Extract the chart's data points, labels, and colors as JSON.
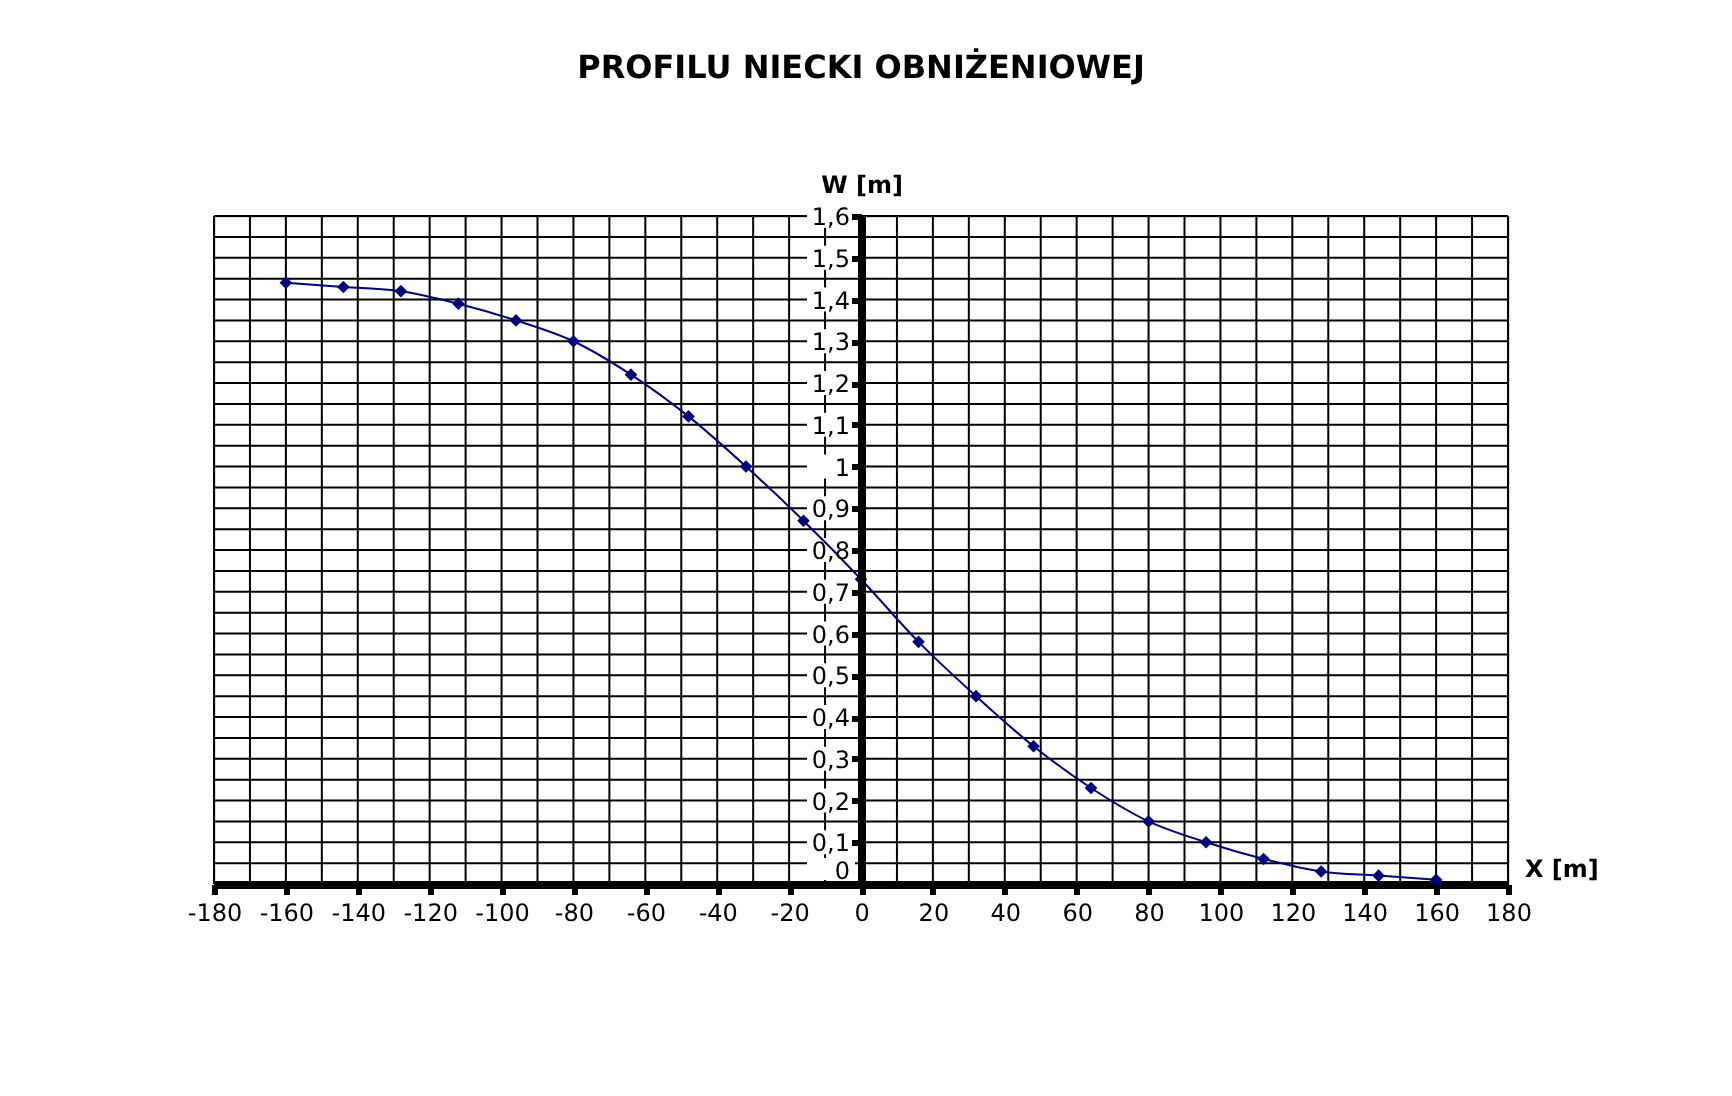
{
  "chart_data": {
    "type": "line",
    "title": "PROFILU NIECKI OBNIŻENIOWEJ",
    "xlabel": "X [m]",
    "ylabel": "W [m]",
    "x": [
      -160,
      -144,
      -128,
      -112,
      -96,
      -80,
      -64,
      -48,
      -32,
      -16,
      0,
      16,
      32,
      48,
      64,
      80,
      96,
      112,
      128,
      144,
      160
    ],
    "series": [
      {
        "color": "#000080",
        "values": [
          1.44,
          1.43,
          1.42,
          1.39,
          1.35,
          1.3,
          1.22,
          1.12,
          1.0,
          0.87,
          0.73,
          0.58,
          0.45,
          0.33,
          0.23,
          0.15,
          0.1,
          0.06,
          0.03,
          0.02,
          0.01
        ]
      }
    ],
    "xlim": [
      -180,
      180
    ],
    "ylim": [
      0,
      1.6
    ],
    "xticks": [
      -180,
      {
        "value": -170,
        "label": null
      },
      -160,
      {
        "value": -150,
        "label": null
      },
      -140,
      {
        "value": -130,
        "label": null
      },
      -120,
      {
        "value": -110,
        "label": null
      },
      -100,
      {
        "value": -90,
        "label": null
      },
      -80,
      {
        "value": -70,
        "label": null
      },
      -60,
      {
        "value": -50,
        "label": null
      },
      -40,
      {
        "value": -30,
        "label": null
      },
      -20,
      {
        "value": -10,
        "label": null
      },
      0,
      {
        "value": 10,
        "label": null
      },
      20,
      {
        "value": 30,
        "label": null
      },
      40,
      {
        "value": 50,
        "label": null
      },
      60,
      {
        "value": 70,
        "label": null
      },
      80,
      {
        "value": 90,
        "label": null
      },
      100,
      {
        "value": 110,
        "label": null
      },
      120,
      {
        "value": 130,
        "label": null
      },
      140,
      {
        "value": 150,
        "label": null
      },
      160,
      {
        "value": 170,
        "label": null
      },
      180
    ],
    "yticks": [
      0,
      {
        "value": 0.05,
        "label": null
      },
      {
        "value": 0.1,
        "label": "0,1"
      },
      {
        "value": 0.15,
        "label": null
      },
      {
        "value": 0.2,
        "label": "0,2"
      },
      {
        "value": 0.25,
        "label": null
      },
      {
        "value": 0.3,
        "label": "0,3"
      },
      {
        "value": 0.35,
        "label": null
      },
      {
        "value": 0.4,
        "label": "0,4"
      },
      {
        "value": 0.45,
        "label": null
      },
      {
        "value": 0.5,
        "label": "0,5"
      },
      {
        "value": 0.55,
        "label": null
      },
      {
        "value": 0.6,
        "label": "0,6"
      },
      {
        "value": 0.65,
        "label": null
      },
      {
        "value": 0.7,
        "label": "0,7"
      },
      {
        "value": 0.75,
        "label": null
      },
      {
        "value": 0.8,
        "label": "0,8"
      },
      {
        "value": 0.85,
        "label": null
      },
      {
        "value": 0.9,
        "label": "0,9"
      },
      {
        "value": 0.95,
        "label": null
      },
      1,
      {
        "value": 1.05,
        "label": null
      },
      {
        "value": 1.1,
        "label": "1,1"
      },
      {
        "value": 1.15,
        "label": null
      },
      {
        "value": 1.2,
        "label": "1,2"
      },
      {
        "value": 1.25,
        "label": null
      },
      {
        "value": 1.3,
        "label": "1,3"
      },
      {
        "value": 1.35,
        "label": null
      },
      {
        "value": 1.4,
        "label": "1,4"
      },
      {
        "value": 1.45,
        "label": null
      },
      {
        "value": 1.5,
        "label": "1,5"
      },
      {
        "value": 1.55,
        "label": null
      },
      {
        "value": 1.6,
        "label": "1,6"
      }
    ],
    "grid": true,
    "marker": "diamond",
    "line_style": "solid"
  }
}
